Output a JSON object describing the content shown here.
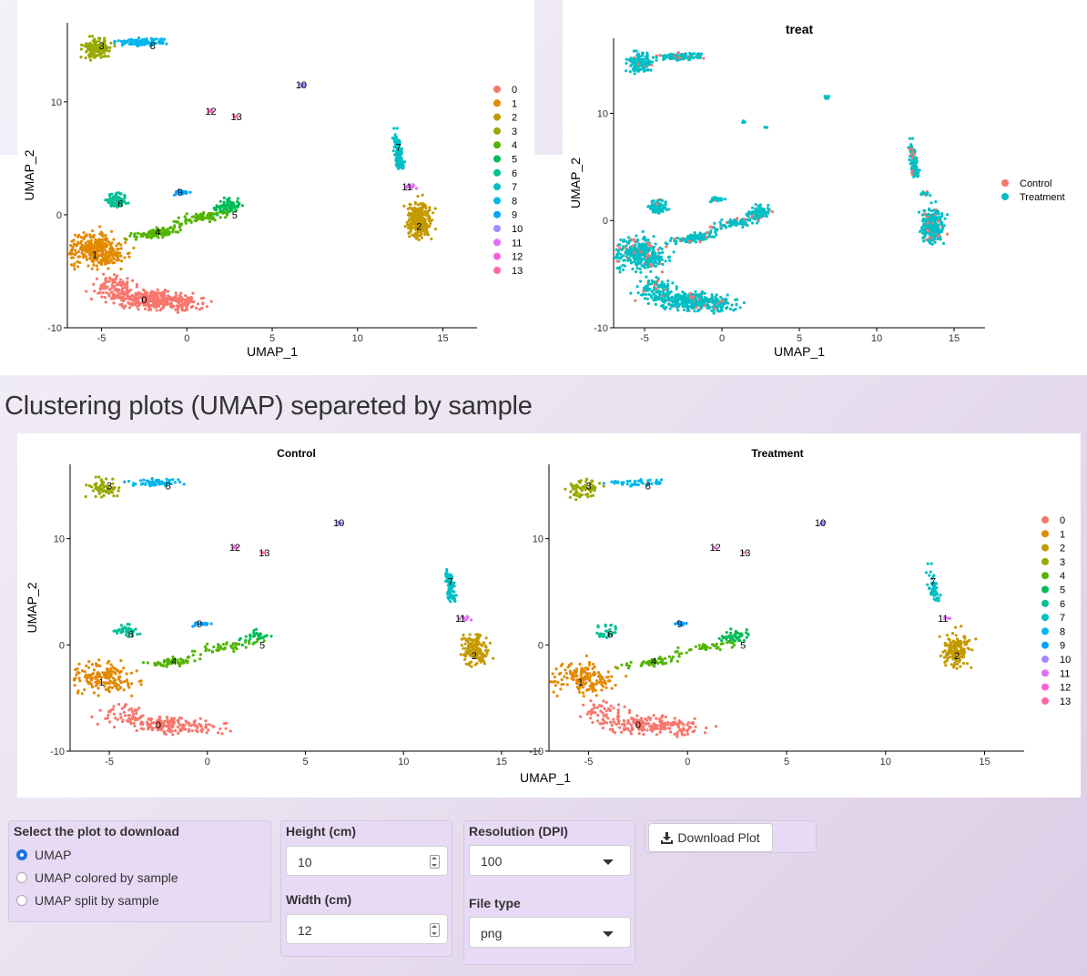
{
  "section_title": "Clustering plots (UMAP) separeted by sample",
  "colors": {
    "clusters": [
      "#F8766D",
      "#E38900",
      "#C49A00",
      "#99A800",
      "#53B400",
      "#00BC56",
      "#00C094",
      "#00BFC4",
      "#00B6EB",
      "#06A4FF",
      "#A58AFF",
      "#DF70F8",
      "#FB61D7",
      "#FF66A8"
    ],
    "control": "#F8766D",
    "treatment": "#00BFC4"
  },
  "plot1": {
    "title": "",
    "xlabel": "UMAP_1",
    "ylabel": "UMAP_2",
    "legend": [
      "0",
      "1",
      "2",
      "3",
      "4",
      "5",
      "6",
      "7",
      "8",
      "9",
      "10",
      "11",
      "12",
      "13"
    ],
    "chart_data": {
      "type": "scatter",
      "xticks": [
        "-5",
        "0",
        "5",
        "10",
        "15"
      ],
      "yticks": [
        "-10",
        "0",
        "10"
      ],
      "xlim": [
        -7,
        17
      ],
      "ylim": [
        -10,
        17
      ],
      "legend_position": "right",
      "cluster_label_positions": [
        [
          -2.5,
          -7.5
        ],
        [
          -5.4,
          -3.5
        ],
        [
          13.6,
          -1
        ],
        [
          -5,
          15
        ],
        [
          -1.7,
          -1.5
        ],
        [
          2.8,
          0
        ],
        [
          -3.9,
          1
        ],
        [
          12.4,
          6
        ],
        [
          -2,
          15
        ],
        [
          -0.4,
          2
        ],
        [
          6.7,
          11.5
        ],
        [
          12.9,
          2.5
        ],
        [
          1.4,
          9.2
        ],
        [
          2.9,
          8.7
        ]
      ]
    }
  },
  "plot2": {
    "title": "treat",
    "xlabel": "UMAP_1",
    "ylabel": "UMAP_2",
    "legend": [
      "Control",
      "Treatment"
    ],
    "chart_data": {
      "type": "scatter",
      "xticks": [
        "-5",
        "0",
        "5",
        "10",
        "15"
      ],
      "yticks": [
        "-10",
        "0",
        "10"
      ],
      "xlim": [
        -7,
        17
      ],
      "ylim": [
        -10,
        17
      ],
      "legend_position": "right"
    }
  },
  "plot3": {
    "facets": [
      "Control",
      "Treatment"
    ],
    "xlabel": "UMAP_1",
    "ylabel": "UMAP_2",
    "legend": [
      "0",
      "1",
      "2",
      "3",
      "4",
      "5",
      "6",
      "7",
      "8",
      "9",
      "10",
      "11",
      "12",
      "13"
    ],
    "chart_data": {
      "type": "scatter",
      "xticks": [
        "-5",
        "0",
        "5",
        "10",
        "15"
      ],
      "yticks": [
        "-10",
        "0",
        "10"
      ],
      "xlim": [
        -7,
        17
      ],
      "ylim": [
        -10,
        17
      ],
      "legend_position": "right"
    }
  },
  "download": {
    "select_label": "Select the plot to download",
    "options": [
      "UMAP",
      "UMAP colored by sample",
      "UMAP split by sample"
    ],
    "selected_index": 0,
    "height_label": "Height (cm)",
    "height_value": "10",
    "width_label": "Width (cm)",
    "width_value": "12",
    "resolution_label": "Resolution (DPI)",
    "resolution_value": "100",
    "filetype_label": "File type",
    "filetype_value": "png",
    "button_label": "Download Plot"
  }
}
